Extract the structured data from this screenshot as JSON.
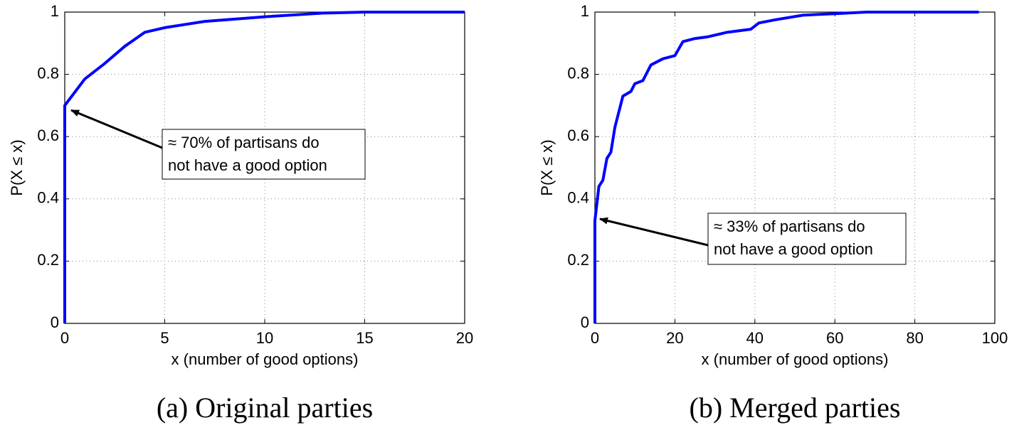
{
  "chart_data": [
    {
      "type": "line",
      "caption": "(a) Original parties",
      "xlabel": "x (number of good options)",
      "ylabel": "P(X ≤ x)",
      "x": [
        0,
        0,
        1,
        2,
        3,
        4,
        5,
        7,
        10,
        13,
        15,
        20
      ],
      "values": [
        0,
        0.7,
        0.785,
        0.835,
        0.89,
        0.935,
        0.95,
        0.97,
        0.985,
        0.997,
        1,
        1
      ],
      "color": "#0000ff",
      "xlim": [
        0,
        20
      ],
      "ylim": [
        0,
        1
      ],
      "xticks": [
        0,
        5,
        10,
        15,
        20
      ],
      "yticks": [
        0,
        0.2,
        0.4,
        0.6,
        0.8,
        1
      ],
      "grid": true,
      "annotation": [
        "≈ 70% of partisans do",
        "not have a good option"
      ]
    },
    {
      "type": "line",
      "caption": "(b) Merged parties",
      "xlabel": "x (number of good options)",
      "ylabel": "P(X ≤ x)",
      "x": [
        0,
        0,
        1,
        2,
        3,
        4,
        5,
        7,
        9,
        10,
        12,
        14,
        17,
        20,
        22,
        25,
        28,
        33,
        39,
        41,
        45,
        52,
        60,
        68,
        96
      ],
      "values": [
        0,
        0.33,
        0.44,
        0.46,
        0.53,
        0.55,
        0.63,
        0.73,
        0.745,
        0.77,
        0.78,
        0.83,
        0.85,
        0.86,
        0.905,
        0.915,
        0.92,
        0.935,
        0.945,
        0.965,
        0.975,
        0.99,
        0.995,
        1,
        1
      ],
      "color": "#0000ff",
      "xlim": [
        0,
        100
      ],
      "ylim": [
        0,
        1
      ],
      "xticks": [
        0,
        20,
        40,
        60,
        80,
        100
      ],
      "yticks": [
        0,
        0.2,
        0.4,
        0.6,
        0.8,
        1
      ],
      "grid": true,
      "annotation": [
        "≈ 33% of partisans do",
        "not have a good option"
      ]
    }
  ]
}
